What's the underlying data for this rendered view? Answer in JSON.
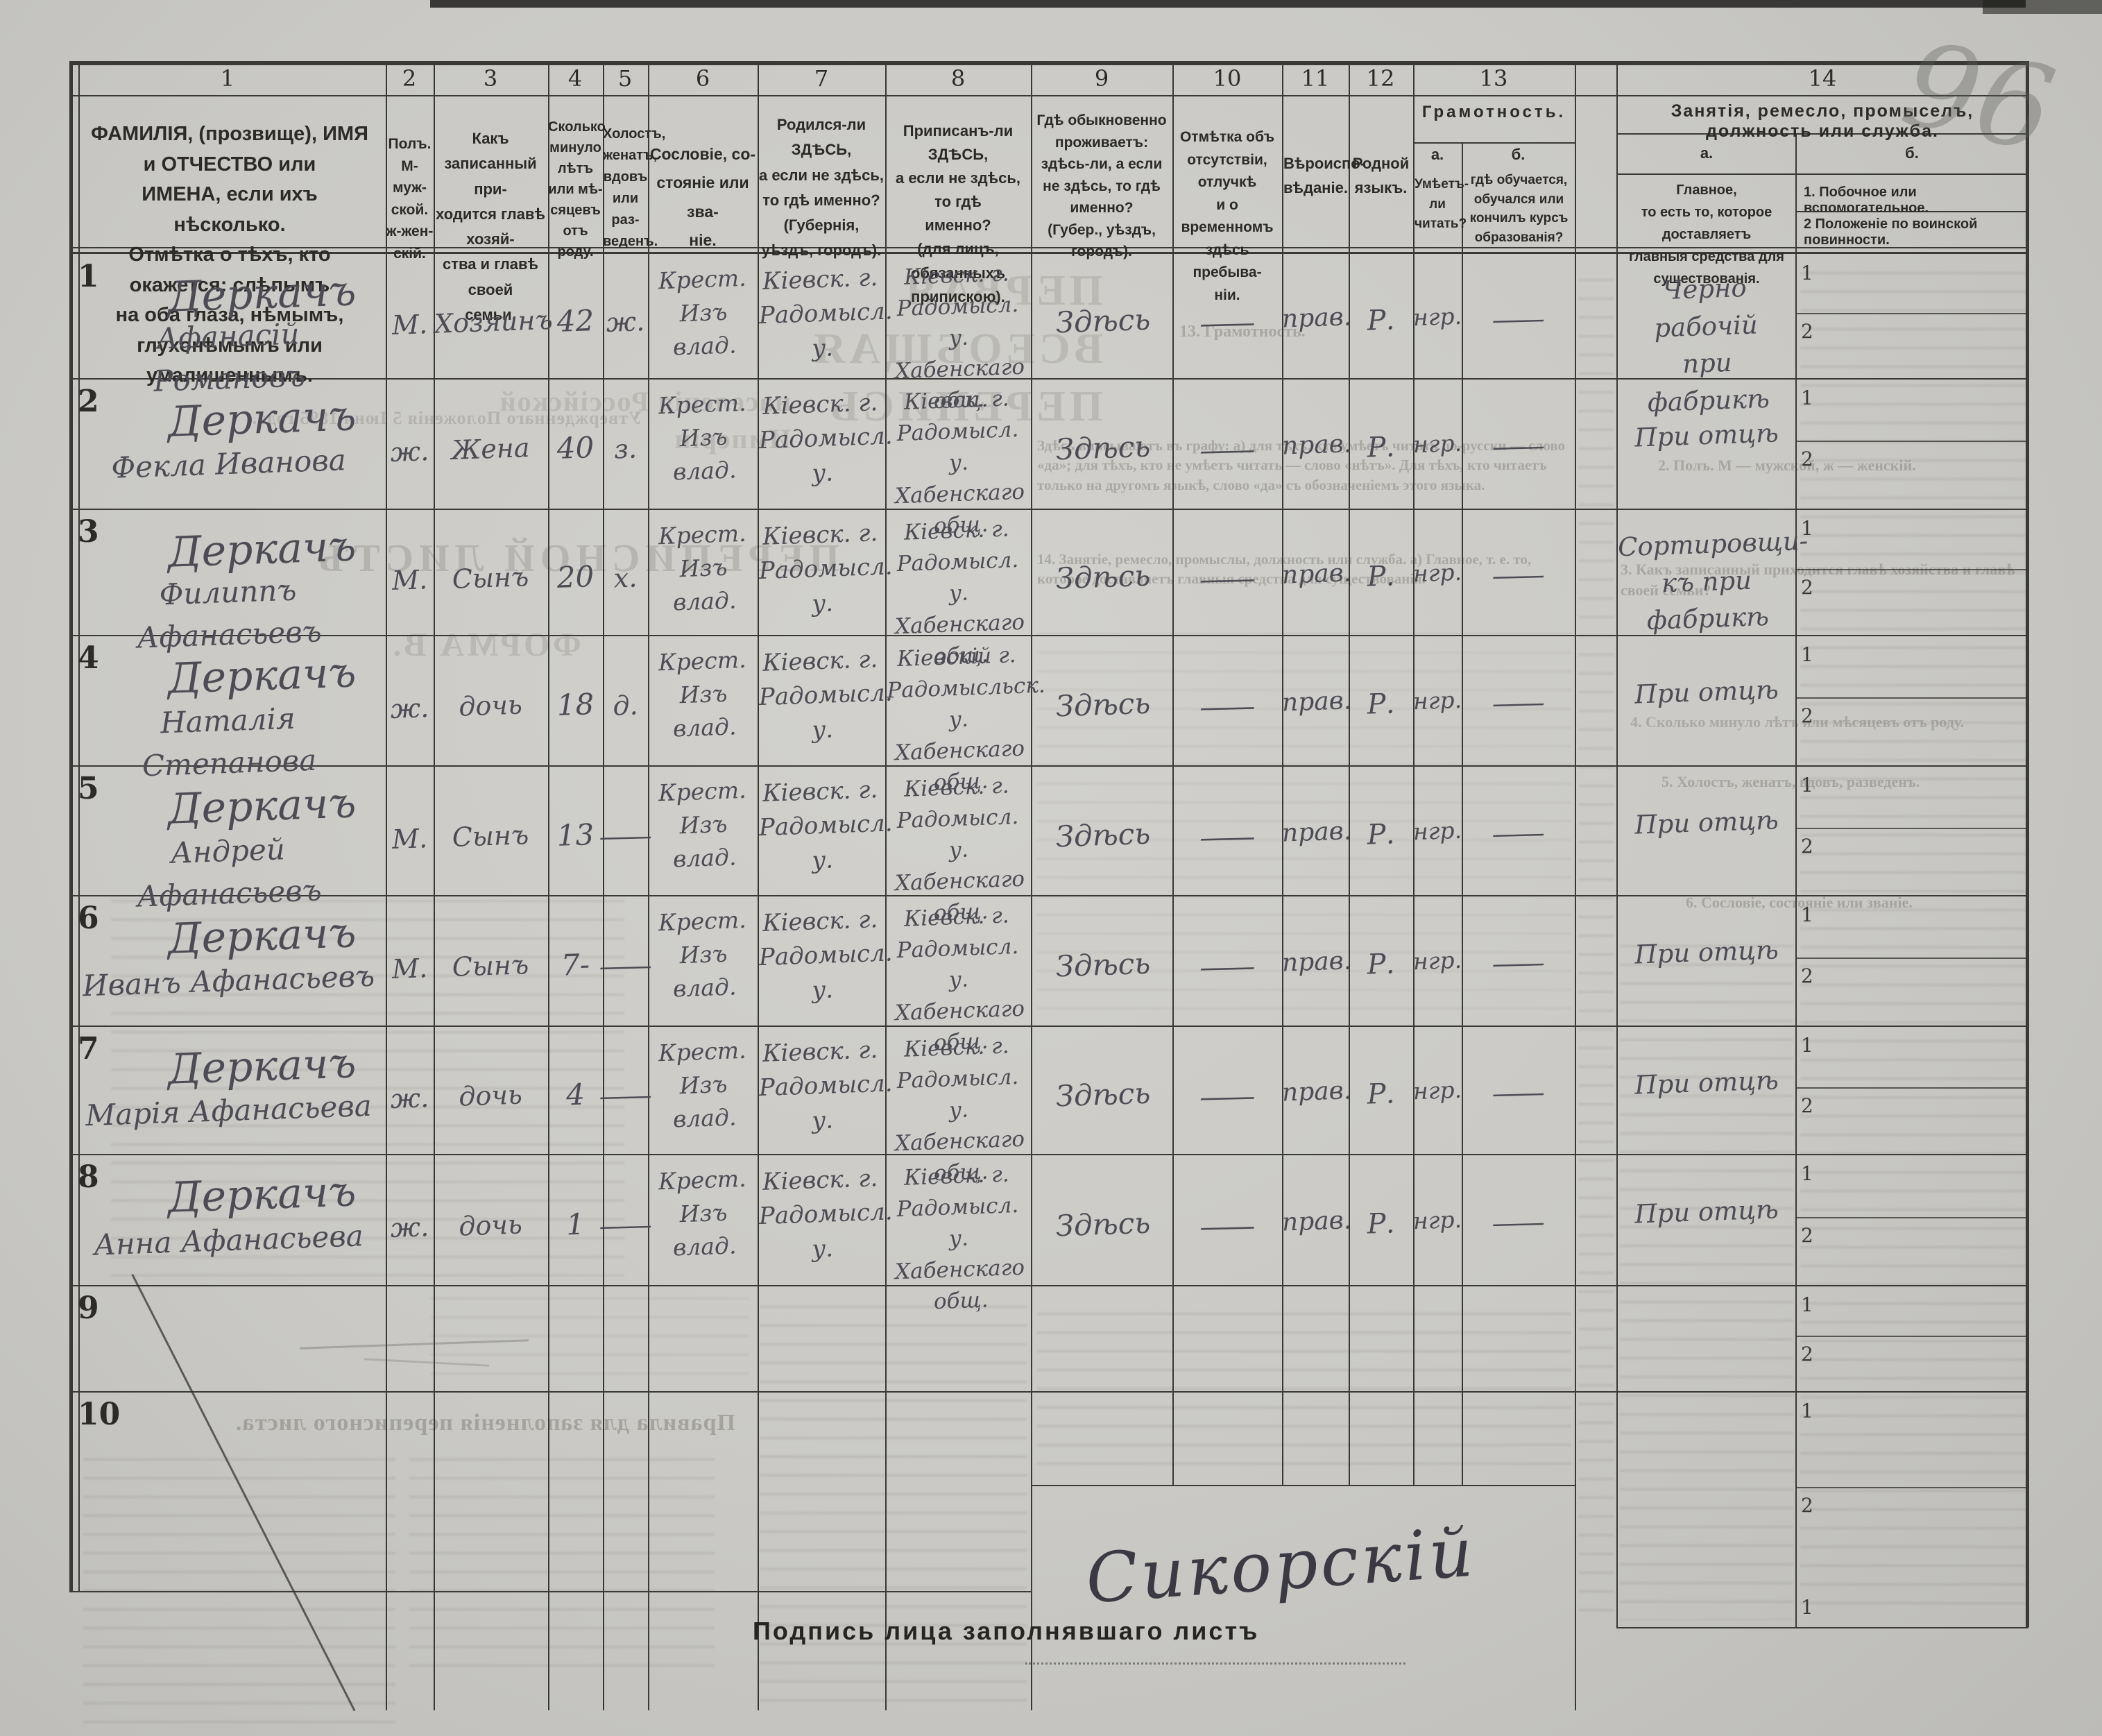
{
  "pencil_note": "96",
  "table": {
    "column_numbers": [
      "1",
      "2",
      "3",
      "4",
      "5",
      "6",
      "7",
      "8",
      "9",
      "10",
      "11",
      "12",
      "13",
      "14"
    ],
    "headers": {
      "c1": "ФАМИЛІЯ, (прозвище), ИМЯ и ОТЧЕСТВО или\nИМЕНА, если ихъ нѣсколько.\nОтмѣтка о тѣхъ, кто окажется: слѣпымъ\nна оба глаза, нѣмымъ, глухонѣмымъ или\nумалишеннымъ.",
      "c2": "Полъ.\nМ-муж-\nской.\nж-жен-\nскій.",
      "c3": "Какъ записанный при-\nходится главѣ хозяй-\nства и главѣ своей\nсемьи.",
      "c4": "Сколько\nминуло\nлѣтъ\nили мѣ-\nсяцевъ\nотъ роду.",
      "c5": "Холостъ,\nженатъ,\nвдовъ\nили раз-\nведенъ.",
      "c6": "Сословіе, со-\nстояніе или зва-\nніе.",
      "c7": "Родился-ли ЗДѢСЬ,\nа если не здѣсь,\nто гдѣ именно?\n(Губернія, уѣздъ, городъ).",
      "c8": "Приписанъ-ли ЗДѢСЬ,\nа если не здѣсь, то гдѣ\nименно?\n(для лицъ, обязанныхъ\nприпискою).",
      "c9": "Гдѣ обыкновенно\nпроживаетъ:\nздѣсь-ли, а если\nне здѣсь, то гдѣ\nименно?\n(Губер., уѣздъ, городъ).",
      "c10": "Отмѣтка объ\nотсутствіи, отлучкѣ\nи о временномъ\nздѣсь пребыва-\nніи.",
      "c11": "Вѣроиспо-\nвѣданіе.",
      "c12": "Родной\nязыкъ.",
      "c13_title": "Грамотность.",
      "c13a_label": "а.",
      "c13b_label": "б.",
      "c13a": "Умѣетъ-\nли\nчитать?",
      "c13b": "гдѣ обучается,\nобучался или\nкончилъ курсъ\nобразованія?",
      "c14_title": "Занятія, ремесло, промыселъ, должность или служба.",
      "c14a_label": "а.",
      "c14b_label": "б.",
      "c14a": "Главное,\nто есть то, которое доставляетъ\nглавныя средства для существованія.",
      "c14b1": "1.  Побочное или вспомогательное.",
      "c14b2": "2  Положеніе по воинской повинности."
    },
    "sub_numbers": [
      "1",
      "2"
    ],
    "rows": [
      {
        "num": "1",
        "surname": "Деркачъ",
        "given": "Афанасій Романовъ",
        "sex": "М.",
        "relation": "Хозяинъ",
        "age": "42",
        "marital": "ж.",
        "estate": "Крест.\nИзъ\nвлад.",
        "birthplace": "Кіевск. г.\nРадомысл.\nу.",
        "registration": "Кіевск. г.\nРадомысл. у.\nХабенскаго\nобщ.",
        "residence": "Здѣсь",
        "absence": "—",
        "religion": "прав.",
        "language": "Р.",
        "literacy": "нгр.",
        "education": "—",
        "occupation": "Черно рабочій\nпри фабрикѣ"
      },
      {
        "num": "2",
        "surname": "Деркачъ",
        "given": "Фекла Иванова",
        "sex": "ж.",
        "relation": "Жена",
        "age": "40",
        "marital": "з.",
        "estate": "Крест.\nИзъ\nвлад.",
        "birthplace": "Кіевск. г.\nРадомысл.\nу.",
        "registration": "Кіевск. г.\nРадомысл. у.\nХабенскаго\nобщ.",
        "residence": "Здѣсь",
        "absence": "—",
        "religion": "прав.",
        "language": "Р.",
        "literacy": "нгр.",
        "education": "—",
        "occupation": "При отцѣ"
      },
      {
        "num": "3",
        "surname": "Деркачъ",
        "given": "Филиппъ Афанасьевъ",
        "sex": "М.",
        "relation": "Сынъ",
        "age": "20",
        "marital": "х.",
        "estate": "Крест.\nИзъ\nвлад.",
        "birthplace": "Кіевск. г.\nРадомысл. у.",
        "registration": "Кіевск. г.\nРадомысл. у.\nХабенскаго\nобщ.",
        "residence": "Здѣсь",
        "absence": "—",
        "religion": "прав.",
        "language": "Р.",
        "literacy": "нгр.",
        "education": "—",
        "occupation": "Сортировщи-\nкъ при фабрикѣ"
      },
      {
        "num": "4",
        "surname": "Деркачъ",
        "given": "Наталія Степанова",
        "sex": "ж.",
        "relation": "дочь",
        "age": "18",
        "marital": "д.",
        "estate": "Крест.\nИзъ\nвлад.",
        "birthplace": "Кіевск. г.\nРадомысл. у.",
        "registration": "Кіевскій г.\nРадомысльск. у.\nХабенскаго\nобщ.",
        "residence": "Здѣсь",
        "absence": "—",
        "religion": "прав.",
        "language": "Р.",
        "literacy": "нгр.",
        "education": "—",
        "occupation": "При отцѣ"
      },
      {
        "num": "5",
        "surname": "Деркачъ",
        "given": "Андрей Афанасьевъ",
        "sex": "М.",
        "relation": "Сынъ",
        "age": "13",
        "marital": "—",
        "estate": "Крест.\nИзъ\nвлад.",
        "birthplace": "Кіевск. г.\nРадомысл.\nу.",
        "registration": "Кіевск. г.\nРадомысл. у.\nХабенскаго\nобщ.",
        "residence": "Здѣсь",
        "absence": "—",
        "religion": "прав.",
        "language": "Р.",
        "literacy": "нгр.",
        "education": "—",
        "occupation": "При отцѣ"
      },
      {
        "num": "6",
        "surname": "Деркачъ",
        "given": "Иванъ Афанасьевъ",
        "sex": "М.",
        "relation": "Сынъ",
        "age": "7-",
        "marital": "—",
        "estate": "Крест.\nИзъ\nвлад.",
        "birthplace": "Кіевск. г.\nРадомысл.\nу.",
        "registration": "Кіевск. г.\nРадомысл. у.\nХабенскаго\nобщ.",
        "residence": "Здѣсь",
        "absence": "—",
        "religion": "прав.",
        "language": "Р.",
        "literacy": "нгр.",
        "education": "—",
        "occupation": "При отцѣ"
      },
      {
        "num": "7",
        "surname": "Деркачъ",
        "given": "Марія Афанасьева",
        "sex": "ж.",
        "relation": "дочь",
        "age": "4",
        "marital": "—",
        "estate": "Крест.\nИзъ\nвлад.",
        "birthplace": "Кіевск. г.\nРадомысл. у.",
        "registration": "Кіевск. г.\nРадомысл. у.\nХабенскаго\nобщ.",
        "residence": "Здѣсь",
        "absence": "—",
        "religion": "прав.",
        "language": "Р.",
        "literacy": "нгр.",
        "education": "—",
        "occupation": "При отцѣ"
      },
      {
        "num": "8",
        "surname": "Деркачъ",
        "given": "Анна Афанасьева",
        "sex": "ж.",
        "relation": "дочь",
        "age": "1",
        "marital": "—",
        "estate": "Крест.\nИзъ\nвлад.",
        "birthplace": "Кіевск. г.\nРадомысл.\nу.",
        "registration": "Кіевск. г.\nРадомысл. у.\nХабенскаго\nобщ.",
        "residence": "Здѣсь",
        "absence": "—",
        "religion": "прав.",
        "language": "Р.",
        "literacy": "нгр.",
        "education": "—",
        "occupation": "При отцѣ"
      },
      {
        "num": "9",
        "surname": "",
        "given": "",
        "sex": "",
        "relation": "",
        "age": "",
        "marital": "",
        "estate": "",
        "birthplace": "",
        "registration": "",
        "residence": "",
        "absence": "",
        "religion": "",
        "language": "",
        "literacy": "",
        "education": "",
        "occupation": ""
      },
      {
        "num": "10",
        "surname": "",
        "given": "",
        "sex": "",
        "relation": "",
        "age": "",
        "marital": "",
        "estate": "",
        "birthplace": "",
        "registration": "",
        "residence": "",
        "absence": "",
        "religion": "",
        "language": "",
        "literacy": "",
        "education": "",
        "occupation": ""
      }
    ]
  },
  "footer": {
    "signature_label": "Подпись лица заполнявшаго листъ",
    "signature": "Сикорскій"
  },
  "ghost_text": {
    "mirrored": [
      "ПЕРВАЯ ВСЕОБЩАЯ ПЕРЕПИСЬ",
      "населенія Россійской Имперіи",
      "Утвержденнаго Положенія 5 Іюня 1895 года.",
      "ПЕРЕПИСНОЙ ЛИСТЪ",
      "ФОРМА В.",
      "Правила для заполненія переписного листа."
    ],
    "faint": [
      "13. Грамотность.",
      "Здѣсь вписываютъ въ графу: а) для тѣхъ, кто умѣетъ читать по-русски — слово «да»; для тѣхъ, кто не умѣетъ читать — слово «нѣтъ». Для тѣхъ, кто читаетъ только на другомъ языкѣ, слово «да» съ обозначеніемъ этого языка.",
      "14. Занятіе, ремесло, промыслы, должность или служба. а) Главное, т. е. то, которое доставляетъ главныя средства для существованія.",
      "2. Полъ. М — мужской, ж — женскій.",
      "3. Какъ записанный приходится главѣ хозяйства и главѣ своей семьи?",
      "4. Сколько минуло лѣтъ или мѣсяцевъ отъ роду.",
      "5. Холостъ, женатъ, вдовъ, разведенъ.",
      "6. Сословіе, состояніе или званіе."
    ]
  }
}
